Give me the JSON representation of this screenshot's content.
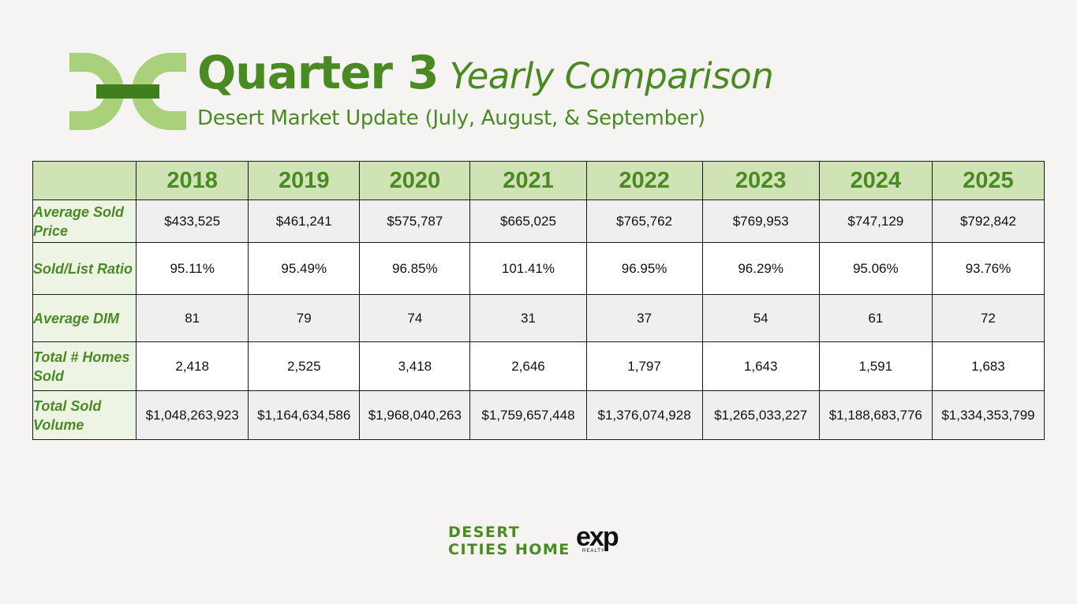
{
  "header": {
    "title_main": "Quarter 3",
    "title_italic": "Yearly Comparison",
    "subtitle": "Desert Market Update (July, August, & September)"
  },
  "table": {
    "years": [
      "2018",
      "2019",
      "2020",
      "2021",
      "2022",
      "2023",
      "2024",
      "2025"
    ],
    "rows": [
      {
        "label": "Average Sold Price",
        "values": [
          "$433,525",
          "$461,241",
          "$575,787",
          "$665,025",
          "$765,762",
          "$769,953",
          "$747,129",
          "$792,842"
        ]
      },
      {
        "label": "Sold/List Ratio",
        "values": [
          "95.11%",
          "95.49%",
          "96.85%",
          "101.41%",
          "96.95%",
          "96.29%",
          "95.06%",
          "93.76%"
        ]
      },
      {
        "label": "Average DIM",
        "values": [
          "81",
          "79",
          "74",
          "31",
          "37",
          "54",
          "61",
          "72"
        ]
      },
      {
        "label": "Total # Homes Sold",
        "values": [
          "2,418",
          "2,525",
          "3,418",
          "2,646",
          "1,797",
          "1,643",
          "1,591",
          "1,683"
        ]
      },
      {
        "label": "Total Sold Volume",
        "values": [
          "$1,048,263,923",
          "$1,164,634,586",
          "$1,968,040,263",
          "$1,759,657,448",
          "$1,376,074,928",
          "$1,265,033,227",
          "$1,188,683,776",
          "$1,334,353,799"
        ]
      }
    ]
  },
  "footer": {
    "brand_line1": "DESERT",
    "brand_line2": "CITIES HOME",
    "exp_logo": "exp",
    "exp_sub": "REALTY"
  },
  "colors": {
    "accent_green": "#4a8a22",
    "header_fill": "#cfe3b5",
    "logo_light_green": "#a9d07a",
    "logo_dark_green": "#3f7f1e"
  },
  "icons": [
    "dc-monogram-logo-icon",
    "exp-realty-logo-icon"
  ]
}
